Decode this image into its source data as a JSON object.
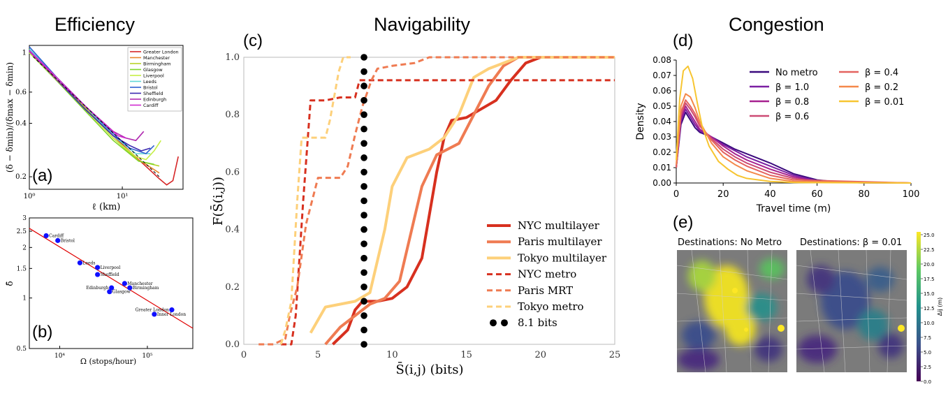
{
  "headers": {
    "efficiency": "Efficiency",
    "navigability": "Navigability",
    "congestion": "Congestion"
  },
  "panel_labels": {
    "a": "(a)",
    "b": "(b)",
    "c": "(c)",
    "d": "(d)",
    "e": "(e)"
  },
  "colors": {
    "nyc": "#d7301f",
    "paris": "#ef7b52",
    "tokyo": "#fdd07a",
    "marker": "#000000",
    "ref_line": "#e00000",
    "blue_pts": "#1010ff"
  },
  "chart_data": [
    {
      "id": "a",
      "type": "line",
      "ylabel": "(δ − δmin)/(δmax − δmin)",
      "xlabel": "ℓ (km)",
      "xscale": "log",
      "yscale": "log",
      "xlim": [
        1,
        45
      ],
      "ylim": [
        0.17,
        1.1
      ],
      "xticks": [
        {
          "v": 1,
          "l": "10⁰"
        },
        {
          "v": 10,
          "l": "10¹"
        }
      ],
      "yticks": [
        {
          "v": 1,
          "l": "1"
        },
        {
          "v": 0.6,
          "l": "0.6"
        },
        {
          "v": 0.4,
          "l": "0.4"
        },
        {
          "v": 0.2,
          "l": "0.2"
        }
      ],
      "legend_position": "top-right",
      "series": [
        {
          "name": "Greater London",
          "color": "#d62728",
          "x": [
            1,
            2,
            4,
            8,
            15,
            25,
            30,
            35,
            40
          ],
          "y": [
            1,
            0.72,
            0.5,
            0.34,
            0.25,
            0.195,
            0.18,
            0.19,
            0.26
          ]
        },
        {
          "name": "Manchester",
          "color": "#e8862a",
          "x": [
            1,
            2,
            4,
            8,
            15,
            25
          ],
          "y": [
            1,
            0.7,
            0.48,
            0.33,
            0.25,
            0.21
          ]
        },
        {
          "name": "Birmingham",
          "color": "#b8d42a",
          "x": [
            1,
            2,
            4,
            8,
            15,
            25
          ],
          "y": [
            1,
            0.7,
            0.49,
            0.33,
            0.245,
            0.23
          ]
        },
        {
          "name": "Glasgow",
          "color": "#7fd62a",
          "x": [
            1,
            2,
            4,
            8,
            15,
            22
          ],
          "y": [
            1,
            0.69,
            0.47,
            0.32,
            0.245,
            0.235
          ]
        },
        {
          "name": "Liverpool",
          "color": "#c6ef45",
          "x": [
            1,
            2,
            4,
            8,
            14,
            18,
            22,
            26
          ],
          "y": [
            1,
            0.7,
            0.48,
            0.33,
            0.26,
            0.25,
            0.28,
            0.32
          ]
        },
        {
          "name": "Leeds",
          "color": "#5fd7d7",
          "x": [
            1,
            2,
            4,
            8,
            14,
            20
          ],
          "y": [
            1.05,
            0.72,
            0.5,
            0.34,
            0.27,
            0.27
          ]
        },
        {
          "name": "Bristol",
          "color": "#2f5fd0",
          "x": [
            1,
            2,
            4,
            8,
            12,
            18,
            22
          ],
          "y": [
            1.08,
            0.72,
            0.5,
            0.35,
            0.29,
            0.27,
            0.3
          ]
        },
        {
          "name": "Sheffield",
          "color": "#3a28b0",
          "x": [
            1,
            2,
            4,
            8,
            12,
            16,
            20
          ],
          "y": [
            1.02,
            0.7,
            0.48,
            0.34,
            0.3,
            0.28,
            0.29
          ]
        },
        {
          "name": "Edinburgh",
          "color": "#b02ab0",
          "x": [
            1,
            2,
            4,
            8,
            11,
            14,
            17
          ],
          "y": [
            1.02,
            0.7,
            0.5,
            0.36,
            0.33,
            0.32,
            0.36
          ]
        },
        {
          "name": "Cardiff",
          "color": "#d02ad0",
          "x": [
            1,
            2,
            4,
            7,
            9,
            11
          ],
          "y": [
            1.03,
            0.72,
            0.5,
            0.38,
            0.34,
            0.33
          ]
        }
      ]
    },
    {
      "id": "b",
      "type": "scatter",
      "ylabel": "δ̄",
      "xlabel": "Ω (stops/hour)",
      "xscale": "log",
      "yscale": "log",
      "xlim": [
        4500,
        330000
      ],
      "ylim": [
        0.5,
        3
      ],
      "xticks": [
        {
          "v": 10000,
          "l": "10⁴"
        },
        {
          "v": 100000,
          "l": "10⁵"
        }
      ],
      "yticks": [
        {
          "v": 3,
          "l": "3"
        },
        {
          "v": 2.5,
          "l": "2.5"
        },
        {
          "v": 2,
          "l": "2"
        },
        {
          "v": 1.5,
          "l": "1.5"
        },
        {
          "v": 1,
          "l": "1"
        },
        {
          "v": 0.5,
          "l": "0.5"
        }
      ],
      "fit": [
        [
          4500,
          2.6
        ],
        [
          330000,
          0.66
        ]
      ],
      "points": [
        {
          "label": "Cardiff",
          "x": 7000,
          "y": 2.35
        },
        {
          "label": "Bristol",
          "x": 9500,
          "y": 2.2
        },
        {
          "label": "Leeds",
          "x": 17000,
          "y": 1.62
        },
        {
          "label": "Liverpool",
          "x": 27000,
          "y": 1.52
        },
        {
          "label": "Sheffield",
          "x": 27000,
          "y": 1.38
        },
        {
          "label": "Manchester",
          "x": 55000,
          "y": 1.22
        },
        {
          "label": "Birmingham",
          "x": 63000,
          "y": 1.15
        },
        {
          "label": "Edinburgh",
          "x": 39000,
          "y": 1.15
        },
        {
          "label": "Glasgow",
          "x": 37000,
          "y": 1.09
        },
        {
          "label": "Greater London",
          "x": 190000,
          "y": 0.85
        },
        {
          "label": "Inner London",
          "x": 120000,
          "y": 0.8
        }
      ]
    },
    {
      "id": "c",
      "type": "line",
      "ylabel": "F(S̄(i,j))",
      "xlabel": "S̄(i,j) (bits)",
      "xlim": [
        0,
        25
      ],
      "ylim": [
        0,
        1
      ],
      "xticks": [
        0,
        5,
        10,
        15,
        20,
        25
      ],
      "yticks": [
        0,
        0.2,
        0.4,
        0.6,
        0.8,
        1.0
      ],
      "legend_position": "bottom-right",
      "series": [
        {
          "name": "NYC multilayer",
          "color": "#d7301f",
          "dash": "solid",
          "x": [
            6,
            7,
            7.5,
            8,
            9,
            10,
            11,
            12,
            13,
            13.5,
            14,
            15,
            17,
            18,
            19,
            20,
            25
          ],
          "y": [
            0,
            0.05,
            0.12,
            0.15,
            0.15,
            0.16,
            0.2,
            0.3,
            0.6,
            0.72,
            0.78,
            0.79,
            0.85,
            0.92,
            0.98,
            1,
            1
          ]
        },
        {
          "name": "Paris multilayer",
          "color": "#ef7b52",
          "dash": "solid",
          "x": [
            5.5,
            6.5,
            7.5,
            8.5,
            9.5,
            10.5,
            11,
            12,
            13,
            14.5,
            15.5,
            16.5,
            17.5,
            18.5,
            19.5,
            25
          ],
          "y": [
            0,
            0.06,
            0.1,
            0.14,
            0.16,
            0.22,
            0.33,
            0.55,
            0.66,
            0.7,
            0.8,
            0.9,
            0.97,
            1,
            1,
            1
          ]
        },
        {
          "name": "Tokyo multilayer",
          "color": "#fdd07a",
          "dash": "solid",
          "x": [
            4.5,
            5.5,
            6.5,
            7.5,
            8.5,
            9.5,
            10,
            11,
            12.5,
            13.5,
            14.5,
            15.5,
            16.5,
            17.5,
            18.5,
            25
          ],
          "y": [
            0.04,
            0.13,
            0.14,
            0.15,
            0.18,
            0.4,
            0.55,
            0.65,
            0.68,
            0.72,
            0.8,
            0.93,
            0.96,
            0.98,
            1,
            1
          ]
        },
        {
          "name": "NYC metro",
          "color": "#d7301f",
          "dash": "dash",
          "x": [
            2.5,
            3.2,
            3.5,
            4,
            4.5,
            5.5,
            6.5,
            7.5,
            7.8,
            25
          ],
          "y": [
            0,
            0,
            0.1,
            0.5,
            0.85,
            0.85,
            0.86,
            0.86,
            0.92,
            0.92
          ]
        },
        {
          "name": "Paris MRT",
          "color": "#ef7b52",
          "dash": "dash",
          "x": [
            1,
            2,
            2.8,
            3.1,
            3.6,
            4.2,
            5,
            6.5,
            7,
            7.5,
            8,
            8.6,
            9,
            10,
            11.5,
            12.5,
            25
          ],
          "y": [
            0,
            0,
            0.02,
            0.1,
            0.2,
            0.42,
            0.58,
            0.58,
            0.62,
            0.73,
            0.83,
            0.92,
            0.96,
            0.97,
            0.98,
            1,
            1
          ]
        },
        {
          "name": "Tokyo metro",
          "color": "#fdd07a",
          "dash": "dash",
          "x": [
            2.5,
            2.8,
            3.2,
            3.6,
            3.9,
            4.5,
            5.5,
            5.8,
            6.4,
            6.7,
            7.2
          ],
          "y": [
            0,
            0.05,
            0.15,
            0.5,
            0.72,
            0.72,
            0.72,
            0.78,
            0.95,
            1,
            1
          ]
        },
        {
          "name": "8.1 bits",
          "color": "#000000",
          "dash": "dots",
          "x": [
            8.1
          ],
          "y": [
            0
          ]
        }
      ]
    },
    {
      "id": "d",
      "type": "line",
      "ylabel": "Density",
      "xlabel": "Travel time (m)",
      "xlim": [
        0,
        100
      ],
      "ylim": [
        0,
        0.08
      ],
      "xticks": [
        0,
        20,
        40,
        60,
        80,
        100
      ],
      "yticks": [
        {
          "v": 0,
          "l": "0.00"
        },
        {
          "v": 0.01,
          "l": "0.01"
        },
        {
          "v": 0.02,
          "l": "0.02"
        },
        {
          "v": 0.03,
          "l": "0.03"
        },
        {
          "v": 0.04,
          "l": "0.04"
        },
        {
          "v": 0.05,
          "l": "0.05"
        },
        {
          "v": 0.06,
          "l": "0.06"
        },
        {
          "v": 0.07,
          "l": "0.07"
        },
        {
          "v": 0.08,
          "l": "0.08"
        }
      ],
      "legend_position": "top-right",
      "series": [
        {
          "name": "No metro",
          "color": "#3a0a7d",
          "x": [
            0,
            2,
            4,
            6,
            8,
            10,
            15,
            20,
            25,
            30,
            40,
            50,
            60,
            70,
            80,
            100
          ],
          "y": [
            0.01,
            0.038,
            0.046,
            0.041,
            0.036,
            0.033,
            0.03,
            0.026,
            0.022,
            0.019,
            0.013,
            0.006,
            0.002,
            0.0005,
            0.0001,
            0
          ]
        },
        {
          "name": "β = 1.0",
          "color": "#7b1fa2",
          "x": [
            0,
            2,
            4,
            6,
            8,
            10,
            15,
            20,
            25,
            30,
            40,
            50,
            60,
            70,
            100
          ],
          "y": [
            0.01,
            0.04,
            0.048,
            0.043,
            0.038,
            0.034,
            0.03,
            0.025,
            0.021,
            0.017,
            0.011,
            0.005,
            0.0015,
            0.0003,
            0
          ]
        },
        {
          "name": "β = 0.8",
          "color": "#a6218f",
          "x": [
            0,
            2,
            4,
            6,
            8,
            10,
            15,
            20,
            25,
            30,
            40,
            50,
            60,
            100
          ],
          "y": [
            0.01,
            0.042,
            0.05,
            0.045,
            0.04,
            0.035,
            0.03,
            0.024,
            0.019,
            0.015,
            0.009,
            0.004,
            0.001,
            0
          ]
        },
        {
          "name": "β = 0.6",
          "color": "#cc4a74",
          "x": [
            0,
            2,
            4,
            6,
            8,
            10,
            15,
            20,
            25,
            30,
            40,
            50,
            60,
            100
          ],
          "y": [
            0.01,
            0.044,
            0.052,
            0.048,
            0.043,
            0.037,
            0.029,
            0.022,
            0.017,
            0.013,
            0.007,
            0.003,
            0.0008,
            0
          ]
        },
        {
          "name": "β = 0.4",
          "color": "#e4625f",
          "x": [
            0,
            2,
            4,
            6,
            8,
            10,
            15,
            20,
            25,
            30,
            40,
            50,
            100
          ],
          "y": [
            0.01,
            0.046,
            0.054,
            0.05,
            0.045,
            0.038,
            0.028,
            0.02,
            0.015,
            0.011,
            0.005,
            0.002,
            0
          ]
        },
        {
          "name": "β = 0.2",
          "color": "#f4884a",
          "x": [
            0,
            2,
            4,
            6,
            8,
            10,
            15,
            20,
            25,
            30,
            40,
            50,
            100
          ],
          "y": [
            0.012,
            0.05,
            0.058,
            0.056,
            0.049,
            0.04,
            0.026,
            0.017,
            0.012,
            0.008,
            0.003,
            0.001,
            0
          ]
        },
        {
          "name": "β = 0.01",
          "color": "#f7c531",
          "x": [
            0,
            1.5,
            3,
            5,
            7,
            9,
            11,
            14,
            18,
            22,
            26,
            30,
            40,
            50,
            100
          ],
          "y": [
            0.015,
            0.055,
            0.073,
            0.076,
            0.068,
            0.052,
            0.037,
            0.024,
            0.014,
            0.009,
            0.005,
            0.003,
            0.001,
            0.0003,
            0
          ]
        }
      ]
    },
    {
      "id": "e",
      "type": "heatmap",
      "maps": [
        {
          "title": "Destinations: No Metro"
        },
        {
          "title": "Destinations: β = 0.01"
        }
      ],
      "colorbar": {
        "label": "Δij (m)",
        "min": 0,
        "max": 25,
        "ticks": [
          "25.0",
          "22.5",
          "20.0",
          "17.5",
          "15.0",
          "12.5",
          "10.0",
          "7.5",
          "5.0",
          "2.5",
          "0.0"
        ]
      }
    }
  ]
}
